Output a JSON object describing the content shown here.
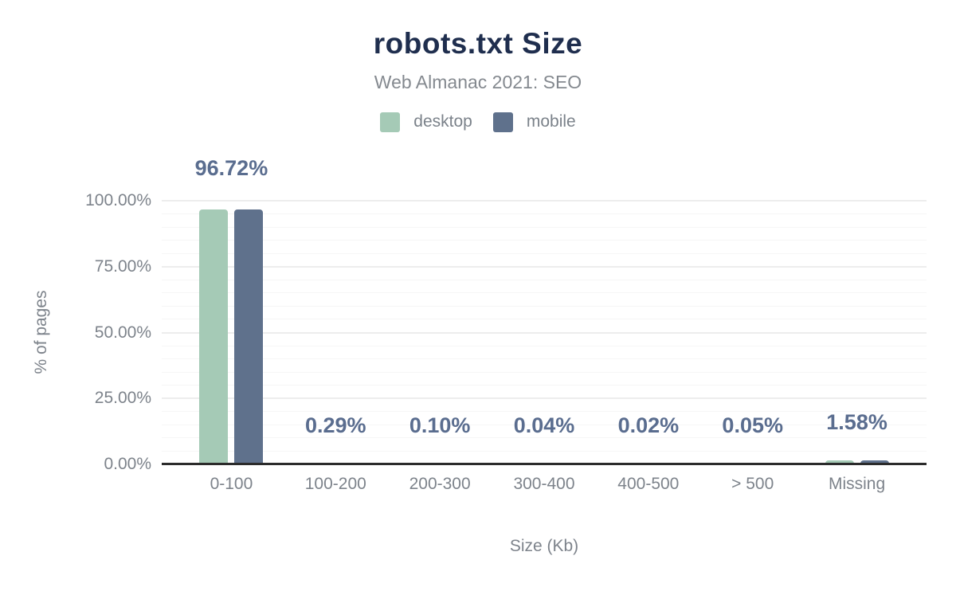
{
  "chart": {
    "title": "robots.txt Size",
    "subtitle": "Web Almanac 2021: SEO",
    "y_axis_title": "% of pages",
    "x_axis_title": "Size (Kb)"
  },
  "legend": {
    "items": [
      {
        "label": "desktop",
        "color": "#a5cab6"
      },
      {
        "label": "mobile",
        "color": "#5f718c"
      }
    ]
  },
  "colors": {
    "title": "#1f2e4e",
    "subtitle": "#84898f",
    "axis_text": "#7d838b",
    "data_label": "#5a6d8f",
    "axis_line": "#2b2b2b",
    "grid_minor": "#f6f6f6",
    "grid_major": "#ededed",
    "desktop_bar": "#a5cab6",
    "mobile_bar": "#5f718c"
  },
  "chart_data": {
    "type": "bar",
    "title": "robots.txt Size",
    "subtitle": "Web Almanac 2021: SEO",
    "categories": [
      "0-100",
      "100-200",
      "200-300",
      "300-400",
      "400-500",
      "> 500",
      "Missing"
    ],
    "series": [
      {
        "name": "desktop",
        "values": [
          96.72,
          0.29,
          0.1,
          0.04,
          0.02,
          0.05,
          1.58
        ]
      },
      {
        "name": "mobile",
        "values": [
          96.72,
          0.29,
          0.1,
          0.04,
          0.02,
          0.05,
          1.58
        ]
      }
    ],
    "data_labels": [
      "96.72%",
      "0.29%",
      "0.10%",
      "0.04%",
      "0.02%",
      "0.05%",
      "1.58%"
    ],
    "xlabel": "Size (Kb)",
    "ylabel": "% of pages",
    "ylim": [
      0,
      100
    ],
    "y_ticks": {
      "values": [
        0,
        25,
        50,
        75,
        100
      ],
      "labels": [
        "0.00%",
        "25.00%",
        "50.00%",
        "75.00%",
        "100.00%"
      ]
    },
    "grid": true,
    "minor_grid_step": 5,
    "major_grid_step": 25,
    "legend_position": "top"
  }
}
